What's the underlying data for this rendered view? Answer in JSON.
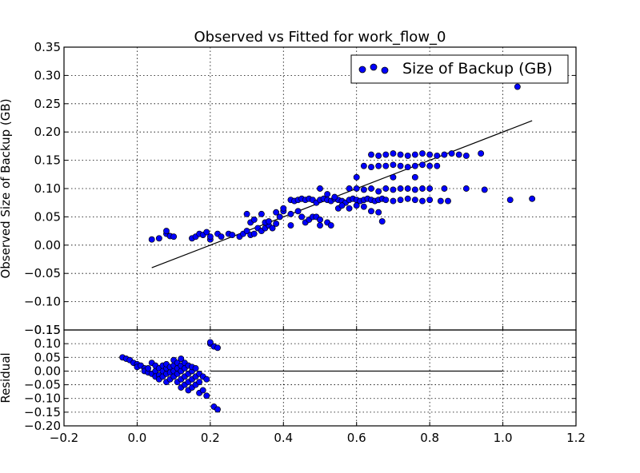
{
  "chart_data": [
    {
      "type": "scatter",
      "title": "Observed vs Fitted for work_flow_0",
      "xlabel": "",
      "ylabel": "Observed Size of Backup (GB)",
      "xlim": [
        -0.2,
        1.2
      ],
      "ylim": [
        -0.15,
        0.35
      ],
      "grid": true,
      "legend_position": "top-right",
      "x_ticks": [
        "−0.2",
        "0.0",
        "0.2",
        "0.4",
        "0.6",
        "0.8",
        "1.0",
        "1.2"
      ],
      "y_ticks": [
        "−0.15",
        "−0.10",
        "−0.05",
        "0.00",
        "0.05",
        "0.10",
        "0.15",
        "0.20",
        "0.25",
        "0.30",
        "0.35"
      ],
      "colors": {
        "marker_fill": "#0000ff",
        "marker_edge": "#000000",
        "line": "#000000"
      },
      "series": [
        {
          "name": "Size of Backup (GB)",
          "kind": "scatter",
          "points": [
            [
              0.04,
              0.01
            ],
            [
              0.06,
              0.012
            ],
            [
              0.08,
              0.02
            ],
            [
              0.08,
              0.025
            ],
            [
              0.09,
              0.016
            ],
            [
              0.1,
              0.015
            ],
            [
              0.15,
              0.012
            ],
            [
              0.16,
              0.015
            ],
            [
              0.17,
              0.02
            ],
            [
              0.18,
              0.018
            ],
            [
              0.19,
              0.023
            ],
            [
              0.2,
              0.01
            ],
            [
              0.2,
              0.015
            ],
            [
              0.22,
              0.02
            ],
            [
              0.23,
              0.015
            ],
            [
              0.25,
              0.02
            ],
            [
              0.26,
              0.018
            ],
            [
              0.28,
              0.015
            ],
            [
              0.29,
              0.02
            ],
            [
              0.3,
              0.025
            ],
            [
              0.31,
              0.018
            ],
            [
              0.32,
              0.02
            ],
            [
              0.33,
              0.03
            ],
            [
              0.34,
              0.025
            ],
            [
              0.35,
              0.03
            ],
            [
              0.36,
              0.035
            ],
            [
              0.37,
              0.03
            ],
            [
              0.3,
              0.055
            ],
            [
              0.31,
              0.04
            ],
            [
              0.32,
              0.045
            ],
            [
              0.34,
              0.055
            ],
            [
              0.35,
              0.04
            ],
            [
              0.36,
              0.042
            ],
            [
              0.38,
              0.038
            ],
            [
              0.38,
              0.058
            ],
            [
              0.39,
              0.05
            ],
            [
              0.4,
              0.06
            ],
            [
              0.4,
              0.065
            ],
            [
              0.42,
              0.055
            ],
            [
              0.42,
              0.035
            ],
            [
              0.44,
              0.06
            ],
            [
              0.45,
              0.05
            ],
            [
              0.46,
              0.04
            ],
            [
              0.47,
              0.045
            ],
            [
              0.48,
              0.05
            ],
            [
              0.49,
              0.05
            ],
            [
              0.5,
              0.045
            ],
            [
              0.5,
              0.035
            ],
            [
              0.52,
              0.04
            ],
            [
              0.53,
              0.035
            ],
            [
              0.42,
              0.08
            ],
            [
              0.43,
              0.078
            ],
            [
              0.44,
              0.08
            ],
            [
              0.45,
              0.082
            ],
            [
              0.46,
              0.08
            ],
            [
              0.47,
              0.082
            ],
            [
              0.48,
              0.08
            ],
            [
              0.49,
              0.075
            ],
            [
              0.5,
              0.08
            ],
            [
              0.51,
              0.082
            ],
            [
              0.52,
              0.08
            ],
            [
              0.53,
              0.078
            ],
            [
              0.54,
              0.082
            ],
            [
              0.55,
              0.08
            ],
            [
              0.56,
              0.078
            ],
            [
              0.57,
              0.075
            ],
            [
              0.58,
              0.08
            ],
            [
              0.59,
              0.082
            ],
            [
              0.6,
              0.08
            ],
            [
              0.61,
              0.078
            ],
            [
              0.62,
              0.08
            ],
            [
              0.63,
              0.082
            ],
            [
              0.64,
              0.08
            ],
            [
              0.65,
              0.078
            ],
            [
              0.66,
              0.08
            ],
            [
              0.67,
              0.082
            ],
            [
              0.68,
              0.08
            ],
            [
              0.7,
              0.078
            ],
            [
              0.72,
              0.08
            ],
            [
              0.74,
              0.082
            ],
            [
              0.76,
              0.08
            ],
            [
              0.78,
              0.078
            ],
            [
              0.8,
              0.08
            ],
            [
              0.83,
              0.078
            ],
            [
              0.85,
              0.078
            ],
            [
              0.5,
              0.1
            ],
            [
              0.52,
              0.09
            ],
            [
              0.54,
              0.085
            ],
            [
              0.55,
              0.065
            ],
            [
              0.56,
              0.07
            ],
            [
              0.58,
              0.065
            ],
            [
              0.6,
              0.07
            ],
            [
              0.62,
              0.068
            ],
            [
              0.64,
              0.06
            ],
            [
              0.66,
              0.058
            ],
            [
              0.58,
              0.1
            ],
            [
              0.6,
              0.1
            ],
            [
              0.62,
              0.098
            ],
            [
              0.64,
              0.1
            ],
            [
              0.66,
              0.095
            ],
            [
              0.68,
              0.1
            ],
            [
              0.7,
              0.098
            ],
            [
              0.72,
              0.1
            ],
            [
              0.74,
              0.1
            ],
            [
              0.76,
              0.098
            ],
            [
              0.78,
              0.1
            ],
            [
              0.8,
              0.1
            ],
            [
              0.84,
              0.1
            ],
            [
              0.9,
              0.1
            ],
            [
              0.95,
              0.098
            ],
            [
              1.02,
              0.08
            ],
            [
              1.08,
              0.082
            ],
            [
              0.6,
              0.12
            ],
            [
              0.62,
              0.14
            ],
            [
              0.64,
              0.138
            ],
            [
              0.66,
              0.14
            ],
            [
              0.68,
              0.14
            ],
            [
              0.7,
              0.142
            ],
            [
              0.72,
              0.14
            ],
            [
              0.74,
              0.138
            ],
            [
              0.76,
              0.14
            ],
            [
              0.78,
              0.142
            ],
            [
              0.8,
              0.14
            ],
            [
              0.82,
              0.14
            ],
            [
              0.7,
              0.12
            ],
            [
              0.76,
              0.12
            ],
            [
              0.64,
              0.16
            ],
            [
              0.66,
              0.158
            ],
            [
              0.68,
              0.16
            ],
            [
              0.7,
              0.162
            ],
            [
              0.72,
              0.16
            ],
            [
              0.74,
              0.158
            ],
            [
              0.76,
              0.16
            ],
            [
              0.78,
              0.162
            ],
            [
              0.8,
              0.16
            ],
            [
              0.82,
              0.158
            ],
            [
              0.84,
              0.16
            ],
            [
              0.86,
              0.162
            ],
            [
              0.88,
              0.16
            ],
            [
              0.9,
              0.158
            ],
            [
              0.94,
              0.162
            ],
            [
              0.67,
              0.042
            ],
            [
              1.04,
              0.28
            ]
          ]
        },
        {
          "kind": "line",
          "x": [
            0.04,
            1.08
          ],
          "y": [
            -0.04,
            0.22
          ]
        }
      ]
    },
    {
      "type": "scatter",
      "title": "",
      "xlabel": "",
      "ylabel": "Residual",
      "xlim": [
        -0.2,
        1.2
      ],
      "ylim": [
        -0.2,
        0.15
      ],
      "grid": true,
      "y_ticks": [
        "−0.20",
        "−0.15",
        "−0.10",
        "−0.05",
        "0.00",
        "0.05",
        "0.10",
        "0.15"
      ],
      "series": [
        {
          "kind": "scatter",
          "points": [
            [
              -0.04,
              0.05
            ],
            [
              -0.03,
              0.045
            ],
            [
              -0.02,
              0.04
            ],
            [
              -0.01,
              0.03
            ],
            [
              0.0,
              0.025
            ],
            [
              0.0,
              0.015
            ],
            [
              0.01,
              0.02
            ],
            [
              0.02,
              0.01
            ],
            [
              0.02,
              0.0
            ],
            [
              0.03,
              -0.005
            ],
            [
              0.03,
              0.01
            ],
            [
              0.04,
              -0.01
            ],
            [
              0.04,
              0.03
            ],
            [
              0.05,
              0.0
            ],
            [
              0.05,
              -0.02
            ],
            [
              0.05,
              0.02
            ],
            [
              0.06,
              -0.015
            ],
            [
              0.06,
              0.01
            ],
            [
              0.06,
              -0.03
            ],
            [
              0.07,
              -0.02
            ],
            [
              0.07,
              0.0
            ],
            [
              0.07,
              0.02
            ],
            [
              0.08,
              -0.04
            ],
            [
              0.08,
              -0.01
            ],
            [
              0.08,
              0.01
            ],
            [
              0.08,
              0.025
            ],
            [
              0.09,
              -0.03
            ],
            [
              0.09,
              -0.005
            ],
            [
              0.09,
              0.015
            ],
            [
              0.1,
              -0.02
            ],
            [
              0.1,
              0.0
            ],
            [
              0.1,
              0.02
            ],
            [
              0.1,
              0.04
            ],
            [
              0.11,
              -0.04
            ],
            [
              0.11,
              -0.01
            ],
            [
              0.11,
              0.01
            ],
            [
              0.11,
              0.03
            ],
            [
              0.12,
              -0.06
            ],
            [
              0.12,
              -0.03
            ],
            [
              0.12,
              0.0
            ],
            [
              0.12,
              0.02
            ],
            [
              0.12,
              0.045
            ],
            [
              0.13,
              -0.05
            ],
            [
              0.13,
              -0.02
            ],
            [
              0.13,
              0.01
            ],
            [
              0.13,
              0.03
            ],
            [
              0.14,
              -0.07
            ],
            [
              0.14,
              -0.04
            ],
            [
              0.14,
              -0.01
            ],
            [
              0.14,
              0.02
            ],
            [
              0.15,
              -0.06
            ],
            [
              0.15,
              -0.03
            ],
            [
              0.15,
              0.0
            ],
            [
              0.15,
              0.015
            ],
            [
              0.16,
              -0.05
            ],
            [
              0.16,
              -0.02
            ],
            [
              0.16,
              0.01
            ],
            [
              0.17,
              -0.08
            ],
            [
              0.17,
              -0.04
            ],
            [
              0.17,
              -0.01
            ],
            [
              0.18,
              -0.07
            ],
            [
              0.18,
              -0.02
            ],
            [
              0.19,
              -0.09
            ],
            [
              0.19,
              -0.03
            ],
            [
              0.2,
              0.1
            ],
            [
              0.21,
              0.09
            ],
            [
              0.21,
              -0.13
            ],
            [
              0.22,
              0.085
            ],
            [
              0.22,
              -0.14
            ],
            [
              0.2,
              0.105
            ]
          ]
        },
        {
          "kind": "line",
          "x": [
            0.2,
            1.0
          ],
          "y": [
            0.0,
            0.0
          ]
        }
      ]
    }
  ]
}
